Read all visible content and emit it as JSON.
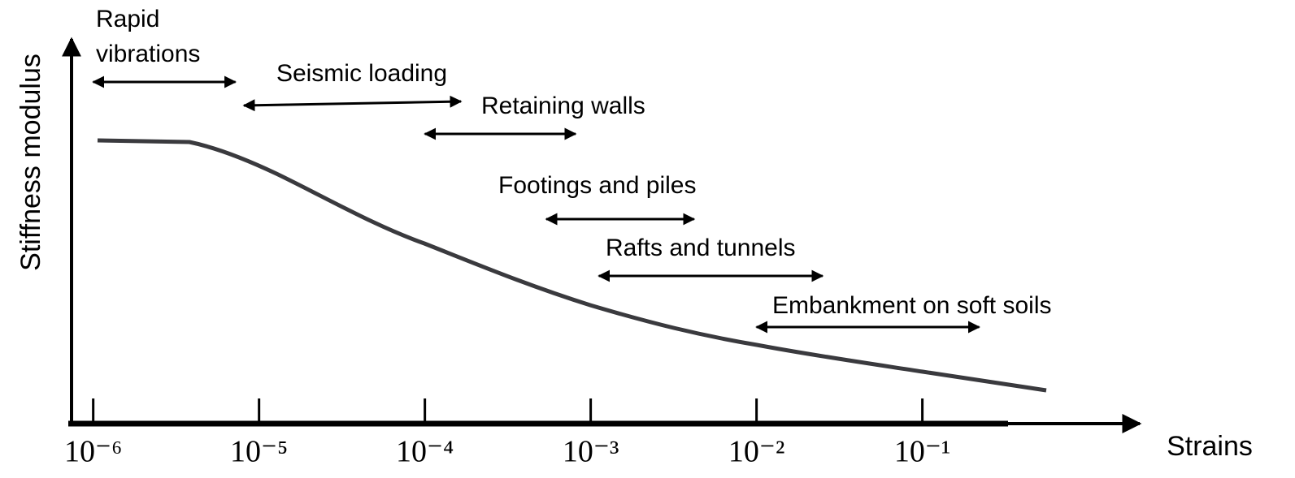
{
  "diagram": {
    "y_axis_label": "Stiffness modulus",
    "x_axis_label": "Strains",
    "x_log_scale": true,
    "xlim": [
      7.4e-07,
      2
    ],
    "xticks": [
      {
        "value": 1e-06,
        "label": "10⁻⁶"
      },
      {
        "value": 1e-05,
        "label": "10⁻⁵"
      },
      {
        "value": 0.0001,
        "label": "10⁻⁴"
      },
      {
        "value": 0.001,
        "label": "10⁻³"
      },
      {
        "value": 0.01,
        "label": "10⁻²"
      },
      {
        "value": 0.1,
        "label": "10⁻¹"
      }
    ],
    "ranges": [
      {
        "lines": [
          "Rapid",
          "vibrations"
        ],
        "from": 1e-06,
        "to": 7.2e-06
      },
      {
        "lines": [
          "Seismic loading"
        ],
        "from": 8.1e-06,
        "to": 0.000165
      },
      {
        "lines": [
          "Retaining walls"
        ],
        "from": 0.0001,
        "to": 0.00081
      },
      {
        "lines": [
          "Footings and piles"
        ],
        "from": 0.00054,
        "to": 0.0042
      },
      {
        "lines": [
          "Rafts and tunnels"
        ],
        "from": 0.00112,
        "to": 0.025
      },
      {
        "lines": [
          "Embankment on soft soils"
        ],
        "from": 0.01,
        "to": 0.22
      }
    ]
  }
}
